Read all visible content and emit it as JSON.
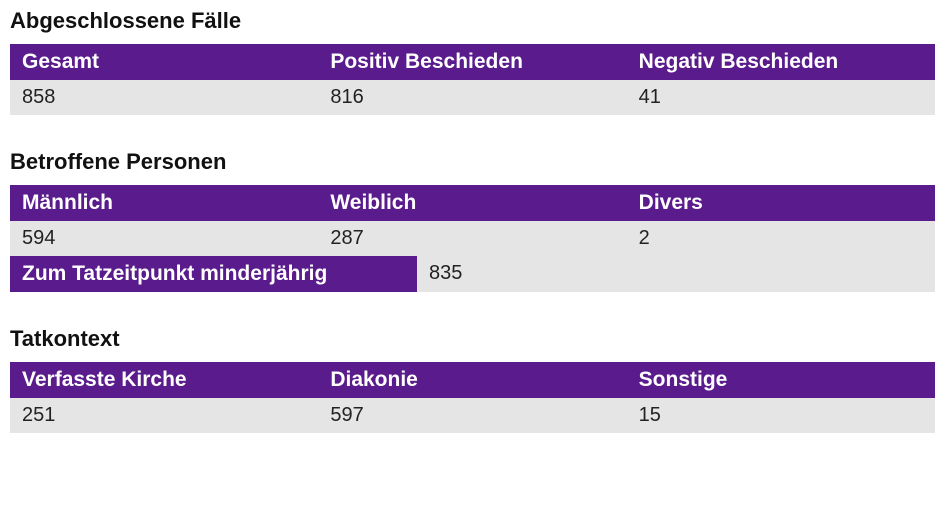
{
  "colors": {
    "header_bg": "#5a1b8c",
    "header_text": "#ffffff",
    "row_bg": "#e5e5e5",
    "row_text": "#222222",
    "title_text": "#111111",
    "page_bg": "#ffffff"
  },
  "typography": {
    "title_fontsize": 22,
    "header_fontsize": 21,
    "value_fontsize": 20,
    "font_family": "Arial"
  },
  "sections": {
    "abgeschlossene": {
      "title": "Abgeschlossene Fälle",
      "type": "table",
      "columns": [
        "Gesamt",
        "Positiv Beschieden",
        "Negativ Beschieden"
      ],
      "rows": [
        [
          "858",
          "816",
          "41"
        ]
      ],
      "col_widths_fr": [
        1,
        1,
        1
      ]
    },
    "betroffene": {
      "title": "Betroffene Personen",
      "type": "table",
      "columns": [
        "Männlich",
        "Weiblich",
        "Divers"
      ],
      "rows": [
        [
          "594",
          "287",
          "2"
        ]
      ],
      "col_widths_fr": [
        1,
        1,
        1
      ],
      "sub_row": {
        "label": "Zum Tatzeitpunkt minderjährig",
        "value": "835",
        "label_width_pct": 44,
        "value_width_pct": 56
      }
    },
    "tatkontext": {
      "title": "Tatkontext",
      "type": "table",
      "columns": [
        "Verfasste Kirche",
        "Diakonie",
        "Sonstige"
      ],
      "rows": [
        [
          "251",
          "597",
          "15"
        ]
      ],
      "col_widths_fr": [
        1,
        1,
        1
      ]
    }
  }
}
